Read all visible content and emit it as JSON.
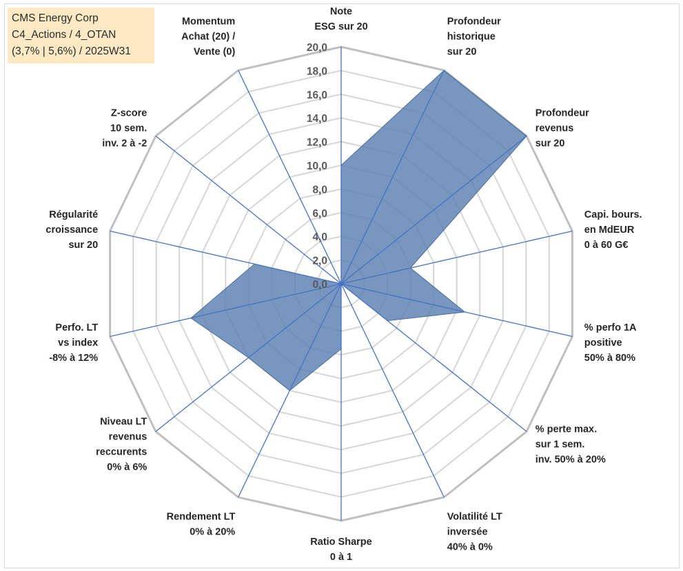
{
  "title_box": {
    "lines": [
      "CMS Energy Corp",
      "C4_Actions / 4_OTAN",
      "(3,7% | 5,6%) / 2025W31"
    ]
  },
  "chart_data": {
    "type": "radar",
    "title": "",
    "rlim": [
      0,
      20
    ],
    "ticks": [
      0,
      2,
      4,
      6,
      8,
      10,
      12,
      14,
      16,
      18,
      20
    ],
    "tick_labels": [
      "0,0",
      "2,0",
      "4,0",
      "6,0",
      "8,0",
      "10,0",
      "12,0",
      "14,0",
      "16,0",
      "18,0",
      "20,0"
    ],
    "grid": true,
    "axes": [
      {
        "label": [
          "Note",
          "ESG sur 20"
        ]
      },
      {
        "label": [
          "Profondeur",
          "historique",
          "sur 20"
        ]
      },
      {
        "label": [
          "Profondeur",
          "revenus",
          "sur 20"
        ]
      },
      {
        "label": [
          "Capi. bours.",
          "en MdEUR",
          "0 à 60 G€"
        ]
      },
      {
        "label": [
          "% perfo 1A",
          "positive",
          "50% à 80%"
        ]
      },
      {
        "label": [
          "% perte max.",
          "sur 1 sem.",
          "inv. 50% à 20%"
        ]
      },
      {
        "label": [
          "Volatilité LT",
          "inversée",
          "40% à 0%"
        ]
      },
      {
        "label": [
          "Ratio Sharpe",
          "0 à 1"
        ]
      },
      {
        "label": [
          "Rendement LT",
          "0% à 20%"
        ]
      },
      {
        "label": [
          "Niveau LT",
          "revenus",
          "reccurents",
          "0% à 6%"
        ]
      },
      {
        "label": [
          "Perfo. LT",
          "vs index",
          "-8% à 12%"
        ]
      },
      {
        "label": [
          "Régularité",
          "croissance",
          "sur 20"
        ]
      },
      {
        "label": [
          "Z-score",
          "10 sem.",
          "inv. 2 à -2"
        ]
      },
      {
        "label": [
          "Momentum",
          "Achat (20) /",
          "Vente (0)"
        ]
      }
    ],
    "series": [
      {
        "values": [
          10.0,
          20.0,
          20.0,
          6.0,
          10.7,
          5.0,
          0.0,
          5.5,
          10.0,
          10.0,
          13.0,
          7.5,
          0.0,
          0.0
        ],
        "color": "#5b7fb0",
        "fill_opacity": 0.82
      }
    ]
  }
}
